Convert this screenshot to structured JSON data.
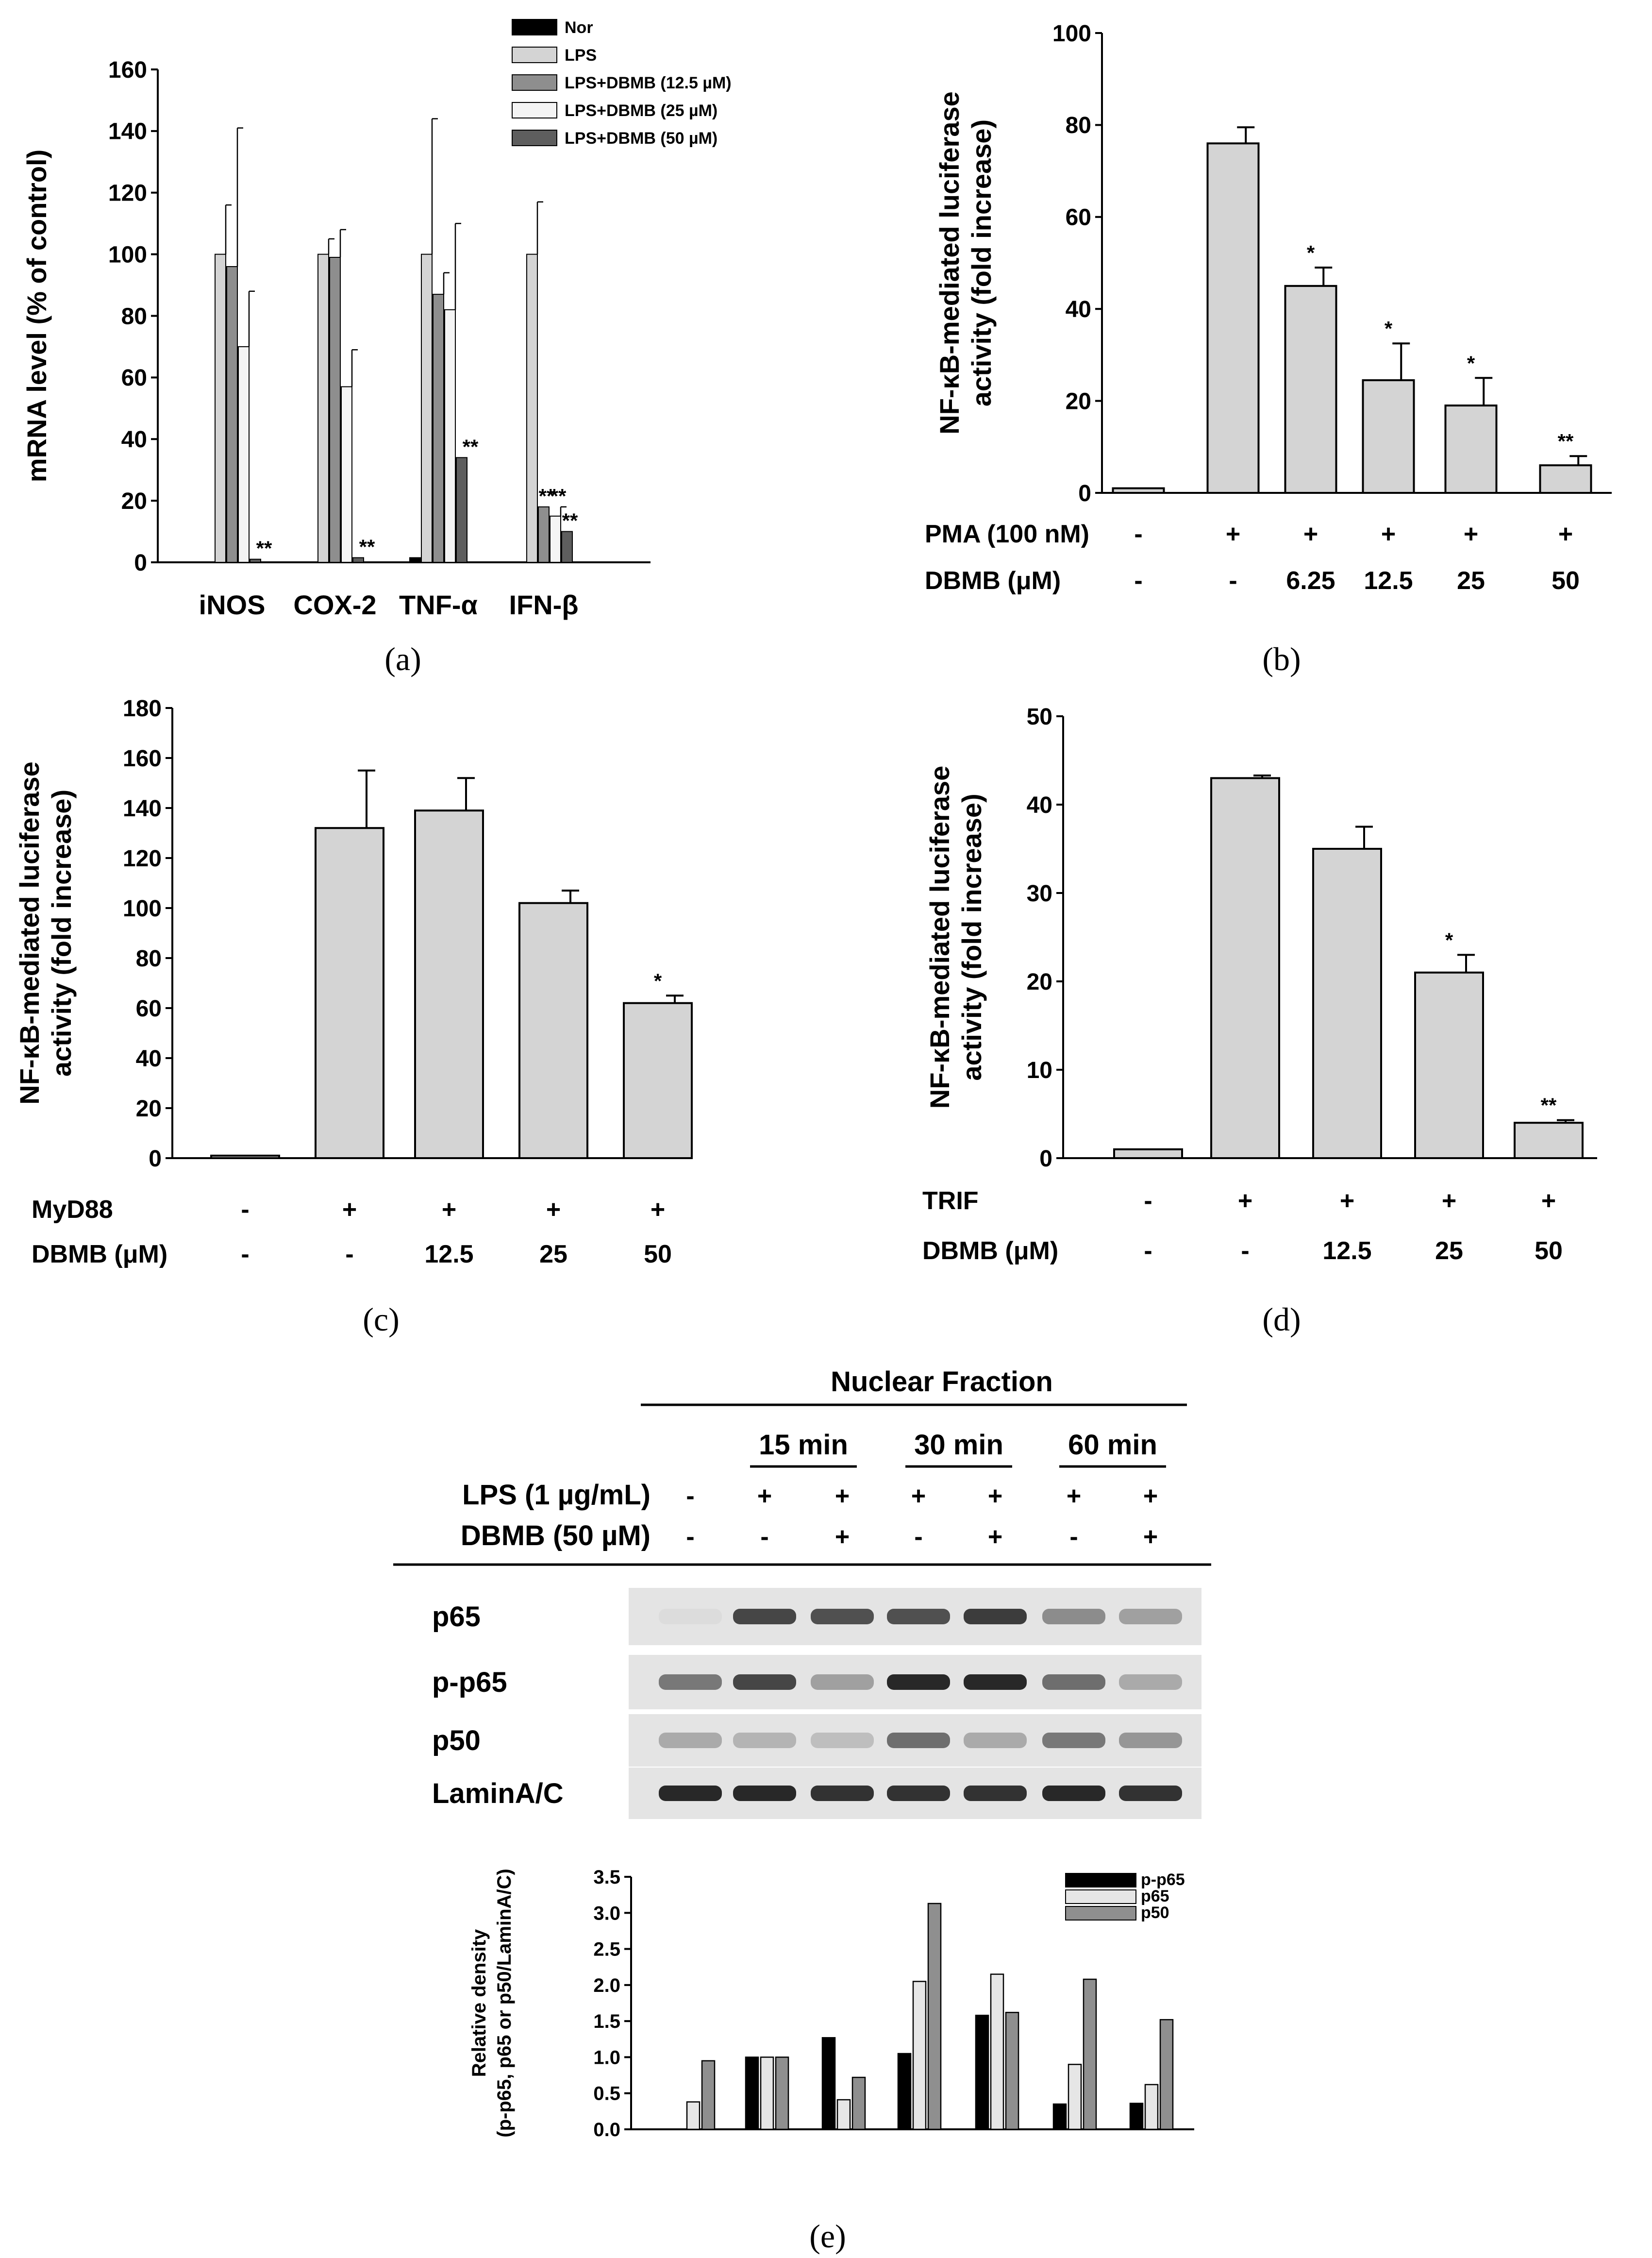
{
  "chart_data": [
    {
      "id": "a",
      "type": "bar",
      "panel_label": "(a)",
      "ylabel": "mRNA level  (% of control)",
      "ylim": [
        0,
        160
      ],
      "yticks": [
        "0",
        "20",
        "40",
        "60",
        "80",
        "100",
        "120",
        "140",
        "160"
      ],
      "categories": [
        "iNOS",
        "COX-2",
        "TNF-α",
        "IFN-β"
      ],
      "series": [
        {
          "name": "Nor",
          "color": "#000000",
          "values": [
            0,
            0,
            1.5,
            0
          ],
          "errors": [
            0,
            0,
            0,
            0
          ]
        },
        {
          "name": "LPS",
          "color": "#d4d4d4",
          "values": [
            100,
            100,
            100,
            100
          ],
          "errors": [
            16,
            5,
            44,
            17
          ]
        },
        {
          "name": "LPS+DBMB (12.5 µM)",
          "color": "#8e8e8e",
          "values": [
            96,
            99,
            87,
            18
          ],
          "errors": [
            45,
            9,
            7,
            0
          ]
        },
        {
          "name": "LPS+DBMB (25 µM)",
          "color": "#f4f4f4",
          "values": [
            70,
            57,
            82,
            15
          ],
          "errors": [
            18,
            12,
            28,
            3
          ]
        },
        {
          "name": "LPS+DBMB (50 µM)",
          "color": "#5e5e5e",
          "values": [
            1,
            1.5,
            34,
            10
          ],
          "errors": [
            0,
            0,
            0,
            0
          ]
        }
      ],
      "annotations": [
        {
          "text": "**",
          "category": 0,
          "series": 4
        },
        {
          "text": "**",
          "category": 1,
          "series": 4
        },
        {
          "text": "**",
          "category": 2,
          "series": 4
        },
        {
          "text": "**",
          "category": 3,
          "series": 2
        },
        {
          "text": "**",
          "category": 3,
          "series": 3
        },
        {
          "text": "**",
          "category": 3,
          "series": 4
        }
      ]
    },
    {
      "id": "b",
      "type": "bar",
      "panel_label": "(b)",
      "ylabel": [
        "NF-κB-mediated luciferase",
        "activity (fold increase)"
      ],
      "ylim": [
        0,
        100
      ],
      "yticks": [
        "0",
        "20",
        "40",
        "60",
        "80",
        "100"
      ],
      "values": [
        1,
        76,
        45,
        24.5,
        19,
        6
      ],
      "errors": [
        0,
        3.5,
        4,
        8,
        6,
        2
      ],
      "stars": [
        "",
        "",
        "*",
        "*",
        "*",
        "**"
      ],
      "conditions": [
        {
          "label": "PMA (100 nM)",
          "values": [
            "-",
            "+",
            "+",
            "+",
            "+",
            "+"
          ]
        },
        {
          "label": "DBMB (μM)",
          "values": [
            "-",
            "-",
            "6.25",
            "12.5",
            "25",
            "50"
          ]
        }
      ]
    },
    {
      "id": "c",
      "type": "bar",
      "panel_label": "(c)",
      "ylabel": [
        "NF-κB-mediated luciferase",
        "activity (fold increase)"
      ],
      "ylim": [
        0,
        180
      ],
      "yticks": [
        "0",
        "20",
        "40",
        "60",
        "80",
        "100",
        "120",
        "140",
        "160",
        "180"
      ],
      "values": [
        1,
        132,
        139,
        102,
        62
      ],
      "errors": [
        0,
        23,
        13,
        5,
        3
      ],
      "stars": [
        "",
        "",
        "",
        "",
        "*"
      ],
      "conditions": [
        {
          "label": "MyD88",
          "values": [
            "-",
            "+",
            "+",
            "+",
            "+"
          ]
        },
        {
          "label": "DBMB (μM)",
          "values": [
            "-",
            "-",
            "12.5",
            "25",
            "50"
          ]
        }
      ]
    },
    {
      "id": "d",
      "type": "bar",
      "panel_label": "(d)",
      "ylabel": [
        "NF-κB-mediated luciferase",
        "activity (fold increase)"
      ],
      "ylim": [
        0,
        50
      ],
      "yticks": [
        "0",
        "10",
        "20",
        "30",
        "40",
        "50"
      ],
      "values": [
        1,
        43,
        35,
        21,
        4
      ],
      "errors": [
        0,
        0.3,
        2.5,
        2,
        0.3
      ],
      "stars": [
        "",
        "",
        "",
        "*",
        "**"
      ],
      "conditions": [
        {
          "label": "TRIF",
          "values": [
            "-",
            "+",
            "+",
            "+",
            "+"
          ]
        },
        {
          "label": "DBMB (μM)",
          "values": [
            "-",
            "-",
            "12.5",
            "25",
            "50"
          ]
        }
      ]
    },
    {
      "id": "e",
      "type": "bar",
      "panel_label": "(e)",
      "ylabel": [
        "Relative density",
        "(p-p65, p65 or p50/LaminA/C)"
      ],
      "ylim": [
        0,
        3.5
      ],
      "yticks": [
        "0.0",
        "0.5",
        "1.0",
        "1.5",
        "2.0",
        "2.5",
        "3.0",
        "3.5"
      ],
      "series": [
        {
          "name": "p-p65",
          "color": "#000000",
          "values": [
            0,
            1.0,
            1.27,
            1.05,
            1.58,
            0.35,
            0.36
          ]
        },
        {
          "name": "p65",
          "color": "#e6e6e6",
          "values": [
            0.38,
            1.0,
            0.41,
            2.05,
            2.15,
            0.9,
            0.62
          ]
        },
        {
          "name": "p50",
          "color": "#8f8f8f",
          "values": [
            0.95,
            1.0,
            0.72,
            3.13,
            1.62,
            2.08,
            1.52
          ]
        }
      ]
    }
  ],
  "blot": {
    "title": "Nuclear Fraction",
    "timepoints": [
      "15 min",
      "30 min",
      "60 min"
    ],
    "lps_label": "LPS (1 µg/mL)",
    "dbmb_label": "DBMB (50 µM)",
    "lps": [
      "-",
      "+",
      "+",
      "+",
      "+",
      "+",
      "+"
    ],
    "dbmb": [
      "-",
      "-",
      "+",
      "-",
      "+",
      "-",
      "+"
    ],
    "rows": [
      {
        "label": "p65",
        "intensity": [
          0.05,
          0.8,
          0.75,
          0.75,
          0.85,
          0.45,
          0.35
        ]
      },
      {
        "label": "p-p65",
        "intensity": [
          0.55,
          0.8,
          0.35,
          0.95,
          0.95,
          0.6,
          0.3
        ]
      },
      {
        "label": "p50",
        "intensity": [
          0.3,
          0.25,
          0.2,
          0.6,
          0.3,
          0.55,
          0.4
        ]
      },
      {
        "label": "LaminA/C",
        "intensity": [
          0.95,
          0.95,
          0.9,
          0.9,
          0.9,
          0.95,
          0.9
        ]
      }
    ]
  }
}
